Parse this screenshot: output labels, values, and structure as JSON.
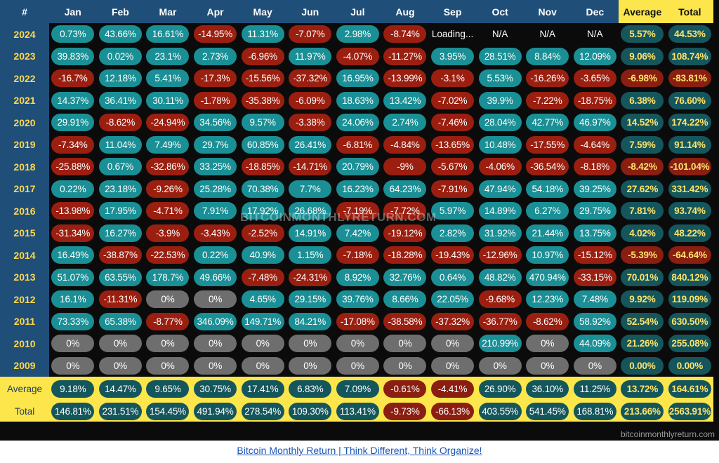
{
  "header": {
    "corner": "#",
    "months": [
      "Jan",
      "Feb",
      "Mar",
      "Apr",
      "May",
      "Jun",
      "Jul",
      "Aug",
      "Sep",
      "Oct",
      "Nov",
      "Dec"
    ],
    "average": "Average",
    "total": "Total"
  },
  "rows": [
    {
      "year": "2024",
      "cells": [
        "0.73%",
        "43.66%",
        "16.61%",
        "-14.95%",
        "11.31%",
        "-7.07%",
        "2.98%",
        "-8.74%",
        "Loading...",
        "N/A",
        "N/A",
        "N/A"
      ],
      "average": "5.57%",
      "total": "44.53%"
    },
    {
      "year": "2023",
      "cells": [
        "39.83%",
        "0.02%",
        "23.1%",
        "2.73%",
        "-6.96%",
        "11.97%",
        "-4.07%",
        "-11.27%",
        "3.95%",
        "28.51%",
        "8.84%",
        "12.09%"
      ],
      "average": "9.06%",
      "total": "108.74%"
    },
    {
      "year": "2022",
      "cells": [
        "-16.7%",
        "12.18%",
        "5.41%",
        "-17.3%",
        "-15.56%",
        "-37.32%",
        "16.95%",
        "-13.99%",
        "-3.1%",
        "5.53%",
        "-16.26%",
        "-3.65%"
      ],
      "average": "-6.98%",
      "total": "-83.81%"
    },
    {
      "year": "2021",
      "cells": [
        "14.37%",
        "36.41%",
        "30.11%",
        "-1.78%",
        "-35.38%",
        "-6.09%",
        "18.63%",
        "13.42%",
        "-7.02%",
        "39.9%",
        "-7.22%",
        "-18.75%"
      ],
      "average": "6.38%",
      "total": "76.60%"
    },
    {
      "year": "2020",
      "cells": [
        "29.91%",
        "-8.62%",
        "-24.94%",
        "34.56%",
        "9.57%",
        "-3.38%",
        "24.06%",
        "2.74%",
        "-7.46%",
        "28.04%",
        "42.77%",
        "46.97%"
      ],
      "average": "14.52%",
      "total": "174.22%"
    },
    {
      "year": "2019",
      "cells": [
        "-7.34%",
        "11.04%",
        "7.49%",
        "29.7%",
        "60.85%",
        "26.41%",
        "-6.81%",
        "-4.84%",
        "-13.65%",
        "10.48%",
        "-17.55%",
        "-4.64%"
      ],
      "average": "7.59%",
      "total": "91.14%"
    },
    {
      "year": "2018",
      "cells": [
        "-25.88%",
        "0.67%",
        "-32.86%",
        "33.25%",
        "-18.85%",
        "-14.71%",
        "20.79%",
        "-9%",
        "-5.67%",
        "-4.06%",
        "-36.54%",
        "-8.18%"
      ],
      "average": "-8.42%",
      "total": "-101.04%"
    },
    {
      "year": "2017",
      "cells": [
        "0.22%",
        "23.18%",
        "-9.26%",
        "25.28%",
        "70.38%",
        "7.7%",
        "16.23%",
        "64.23%",
        "-7.91%",
        "47.94%",
        "54.18%",
        "39.25%"
      ],
      "average": "27.62%",
      "total": "331.42%"
    },
    {
      "year": "2016",
      "cells": [
        "-13.98%",
        "17.95%",
        "-4.71%",
        "7.91%",
        "17.92%",
        "26.68%",
        "-7.19%",
        "-7.72%",
        "5.97%",
        "14.89%",
        "6.27%",
        "29.75%"
      ],
      "average": "7.81%",
      "total": "93.74%"
    },
    {
      "year": "2015",
      "cells": [
        "-31.34%",
        "16.27%",
        "-3.9%",
        "-3.43%",
        "-2.52%",
        "14.91%",
        "7.42%",
        "-19.12%",
        "2.82%",
        "31.92%",
        "21.44%",
        "13.75%"
      ],
      "average": "4.02%",
      "total": "48.22%"
    },
    {
      "year": "2014",
      "cells": [
        "16.49%",
        "-38.87%",
        "-22.53%",
        "0.22%",
        "40.9%",
        "1.15%",
        "-7.18%",
        "-18.28%",
        "-19.43%",
        "-12.96%",
        "10.97%",
        "-15.12%"
      ],
      "average": "-5.39%",
      "total": "-64.64%"
    },
    {
      "year": "2013",
      "cells": [
        "51.07%",
        "63.55%",
        "178.7%",
        "49.66%",
        "-7.48%",
        "-24.31%",
        "8.92%",
        "32.76%",
        "0.64%",
        "48.82%",
        "470.94%",
        "-33.15%"
      ],
      "average": "70.01%",
      "total": "840.12%"
    },
    {
      "year": "2012",
      "cells": [
        "16.1%",
        "-11.31%",
        "0%",
        "0%",
        "4.65%",
        "29.15%",
        "39.76%",
        "8.66%",
        "22.05%",
        "-9.68%",
        "12.23%",
        "7.48%"
      ],
      "average": "9.92%",
      "total": "119.09%"
    },
    {
      "year": "2011",
      "cells": [
        "73.33%",
        "65.38%",
        "-8.77%",
        "346.09%",
        "149.71%",
        "84.21%",
        "-17.08%",
        "-38.58%",
        "-37.32%",
        "-36.77%",
        "-8.62%",
        "58.92%"
      ],
      "average": "52.54%",
      "total": "630.50%"
    },
    {
      "year": "2010",
      "cells": [
        "0%",
        "0%",
        "0%",
        "0%",
        "0%",
        "0%",
        "0%",
        "0%",
        "0%",
        "210.99%",
        "0%",
        "44.09%"
      ],
      "average": "21.26%",
      "total": "255.08%"
    },
    {
      "year": "2009",
      "cells": [
        "0%",
        "0%",
        "0%",
        "0%",
        "0%",
        "0%",
        "0%",
        "0%",
        "0%",
        "0%",
        "0%",
        "0%"
      ],
      "average": "0.00%",
      "total": "0.00%"
    }
  ],
  "summary": [
    {
      "label": "Average",
      "cells": [
        "9.18%",
        "14.47%",
        "9.65%",
        "30.75%",
        "17.41%",
        "6.83%",
        "7.09%",
        "-0.61%",
        "-4.41%",
        "26.90%",
        "36.10%",
        "11.25%"
      ],
      "average": "13.72%",
      "total": "164.61%"
    },
    {
      "label": "Total",
      "cells": [
        "146.81%",
        "231.51%",
        "154.45%",
        "491.94%",
        "278.54%",
        "109.30%",
        "113.41%",
        "-9.73%",
        "-66.13%",
        "403.55%",
        "541.45%",
        "168.81%"
      ],
      "average": "213.66%",
      "total": "2563.91%"
    }
  ],
  "watermark": "BITCOINMONTHLYRETURN.COM",
  "site_label": "bitcoinmonthlyreturn.com",
  "footer_link": "Bitcoin Monthly Return | Think Different, Think Organize!",
  "colors": {
    "positive": "#1a8f95",
    "negative": "#9b1f10",
    "zero": "#6e6e6e",
    "header_blue": "#1f4e79",
    "highlight_yellow": "#fde64b",
    "gold_text": "#ffe26a"
  }
}
